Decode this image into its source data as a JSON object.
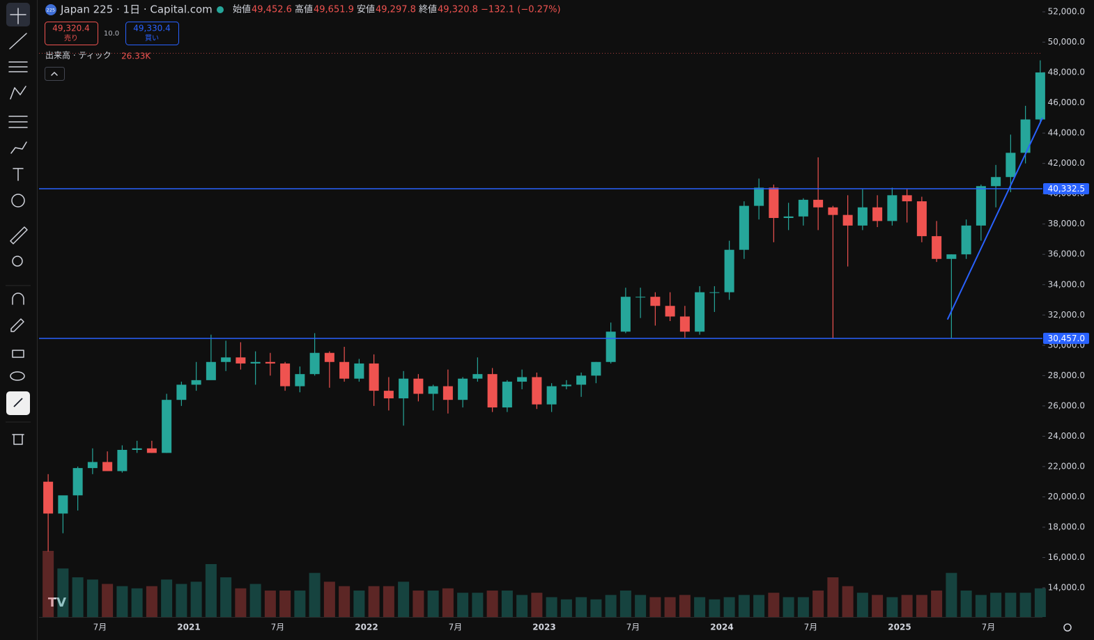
{
  "header": {
    "badge": "225",
    "symbol": "Japan 225 · 1日 · Capital.com",
    "open_label": "始値",
    "open": "49,452.6",
    "high_label": "高値",
    "high": "49,651.9",
    "low_label": "安値",
    "low": "49,297.8",
    "close_label": "終値",
    "close": "49,320.8",
    "change": "−132.1 (−0.27%)",
    "sell_price": "49,320.4",
    "sell_label": "売り",
    "spread": "10.0",
    "buy_price": "49,330.4",
    "buy_label": "買い",
    "volume_label": "出来高 · ティック",
    "volume_value": "26.33K"
  },
  "chart_data": {
    "type": "candlestick",
    "categories": [
      null,
      null,
      null,
      null,
      "7月",
      null,
      null,
      null,
      null,
      null,
      "2021",
      null,
      null,
      null,
      null,
      null,
      "7月",
      null,
      null,
      null,
      null,
      null,
      "2022",
      null,
      null,
      null,
      null,
      null,
      "7月",
      null,
      null,
      null,
      null,
      null,
      "2023",
      null,
      null,
      null,
      null,
      null,
      "7月",
      null,
      null,
      null,
      null,
      null,
      "2024",
      null,
      null,
      null,
      null,
      null,
      "7月",
      null,
      null,
      null,
      null,
      null,
      "2025",
      null,
      null,
      null,
      null,
      null,
      "7月",
      null,
      null,
      null
    ],
    "open": [
      21000,
      18900,
      20100,
      21900,
      22300,
      21700,
      23100,
      23200,
      22900,
      26400,
      27400,
      27700,
      28900,
      29200,
      28800,
      28900,
      28800,
      27300,
      28100,
      29500,
      28900,
      27800,
      28800,
      27000,
      26500,
      27800,
      26800,
      27300,
      26400,
      27800,
      28100,
      25900,
      27600,
      27900,
      26100,
      27300,
      27400,
      28000,
      28900,
      30900,
      33200,
      33200,
      32600,
      31900,
      30900,
      33500,
      33500,
      36300,
      39200,
      40400,
      38400,
      38500,
      39600,
      39100,
      38600,
      37900,
      39100,
      38200,
      39900,
      39500,
      37200,
      35700,
      36000,
      37900,
      40500,
      41100,
      42700,
      44900
    ],
    "high": [
      21500,
      20000,
      22000,
      23200,
      23000,
      23400,
      23700,
      23700,
      26800,
      27600,
      28900,
      30700,
      30300,
      30200,
      29600,
      29500,
      28900,
      28600,
      30800,
      29600,
      29900,
      29100,
      29400,
      27900,
      28300,
      28100,
      27400,
      28400,
      27900,
      29200,
      28500,
      27700,
      28400,
      28200,
      27500,
      27700,
      28200,
      28900,
      31500,
      33800,
      33800,
      33500,
      33500,
      32600,
      33900,
      33900,
      36900,
      39500,
      41000,
      40600,
      39400,
      39700,
      42400,
      39200,
      39900,
      40300,
      39900,
      40400,
      40300,
      39800,
      38200,
      36000,
      38300,
      40600,
      41900,
      43900,
      45800,
      48800
    ],
    "low": [
      16400,
      17600,
      19100,
      21500,
      21700,
      21600,
      22900,
      22900,
      22900,
      26000,
      27000,
      27800,
      28300,
      28400,
      27400,
      28000,
      27000,
      26900,
      28000,
      27200,
      27600,
      27600,
      26000,
      25700,
      24700,
      26300,
      25700,
      25500,
      25900,
      27600,
      25600,
      25600,
      27100,
      25800,
      25600,
      27100,
      26600,
      27500,
      28800,
      30800,
      31800,
      31300,
      31600,
      30500,
      30700,
      32200,
      33000,
      35700,
      38300,
      36800,
      37600,
      37900,
      37600,
      30450,
      35200,
      37600,
      37800,
      37900,
      38100,
      36800,
      35500,
      30460,
      35700,
      36900,
      39100,
      40100,
      42000,
      44600
    ],
    "close": [
      18900,
      20100,
      21900,
      22300,
      21700,
      23100,
      23200,
      22900,
      26400,
      27400,
      27700,
      28900,
      29200,
      28800,
      28900,
      28800,
      27300,
      28100,
      29500,
      28900,
      27800,
      28800,
      27000,
      26500,
      27800,
      26800,
      27300,
      26400,
      27800,
      28100,
      25900,
      27600,
      27900,
      26100,
      27300,
      27400,
      28000,
      28900,
      30900,
      33200,
      33200,
      32600,
      31900,
      30900,
      33500,
      33500,
      36300,
      39200,
      40400,
      38400,
      38500,
      39600,
      39100,
      38600,
      37900,
      39100,
      38200,
      39900,
      39500,
      37200,
      35700,
      36000,
      37900,
      40500,
      41100,
      42700,
      44900,
      48000
    ],
    "volume": [
      30,
      22,
      18,
      17,
      15,
      14,
      13,
      14,
      17,
      15,
      16,
      24,
      18,
      13,
      15,
      12,
      12,
      12,
      20,
      16,
      14,
      12,
      14,
      14,
      16,
      12,
      12,
      13,
      11,
      11,
      12,
      12,
      10,
      11,
      9,
      8,
      9,
      8,
      10,
      12,
      10,
      9,
      9,
      10,
      9,
      8,
      9,
      10,
      10,
      11,
      9,
      9,
      12,
      18,
      14,
      11,
      10,
      9,
      10,
      10,
      12,
      20,
      12,
      10,
      11,
      11,
      11,
      13
    ],
    "up_color": "#26a69a",
    "down_color": "#ef5350",
    "ylim": [
      12073,
      52781
    ],
    "yticks": [
      {
        "value": 14000,
        "label": "14,000.0"
      },
      {
        "value": 16000,
        "label": "16,000.0"
      },
      {
        "value": 18000,
        "label": "18,000.0"
      },
      {
        "value": 20000,
        "label": "20,000.0"
      },
      {
        "value": 22000,
        "label": "22,000.0"
      },
      {
        "value": 24000,
        "label": "24,000.0"
      },
      {
        "value": 26000,
        "label": "26,000.0"
      },
      {
        "value": 28000,
        "label": "28,000.0"
      },
      {
        "value": 30000,
        "label": "30,000.0"
      },
      {
        "value": 32000,
        "label": "32,000.0"
      },
      {
        "value": 34000,
        "label": "34,000.0"
      },
      {
        "value": 36000,
        "label": "36,000.0"
      },
      {
        "value": 38000,
        "label": "38,000.0"
      },
      {
        "value": 40000,
        "label": "40,000.0"
      },
      {
        "value": 42000,
        "label": "42,000.0"
      },
      {
        "value": 44000,
        "label": "44,000.0"
      },
      {
        "value": 46000,
        "label": "46,000.0"
      },
      {
        "value": 48000,
        "label": "48,000.0"
      },
      {
        "value": 50000,
        "label": "50,000.0"
      },
      {
        "value": 52000,
        "label": "52,000.0"
      }
    ],
    "hlines": [
      {
        "value": 40332.5,
        "label": "40,332.5"
      },
      {
        "value": 30457,
        "label": "30,457.0"
      }
    ],
    "trendline": {
      "from": 31700,
      "to": 45000
    },
    "line_color": "#2962ff",
    "grid": false
  }
}
